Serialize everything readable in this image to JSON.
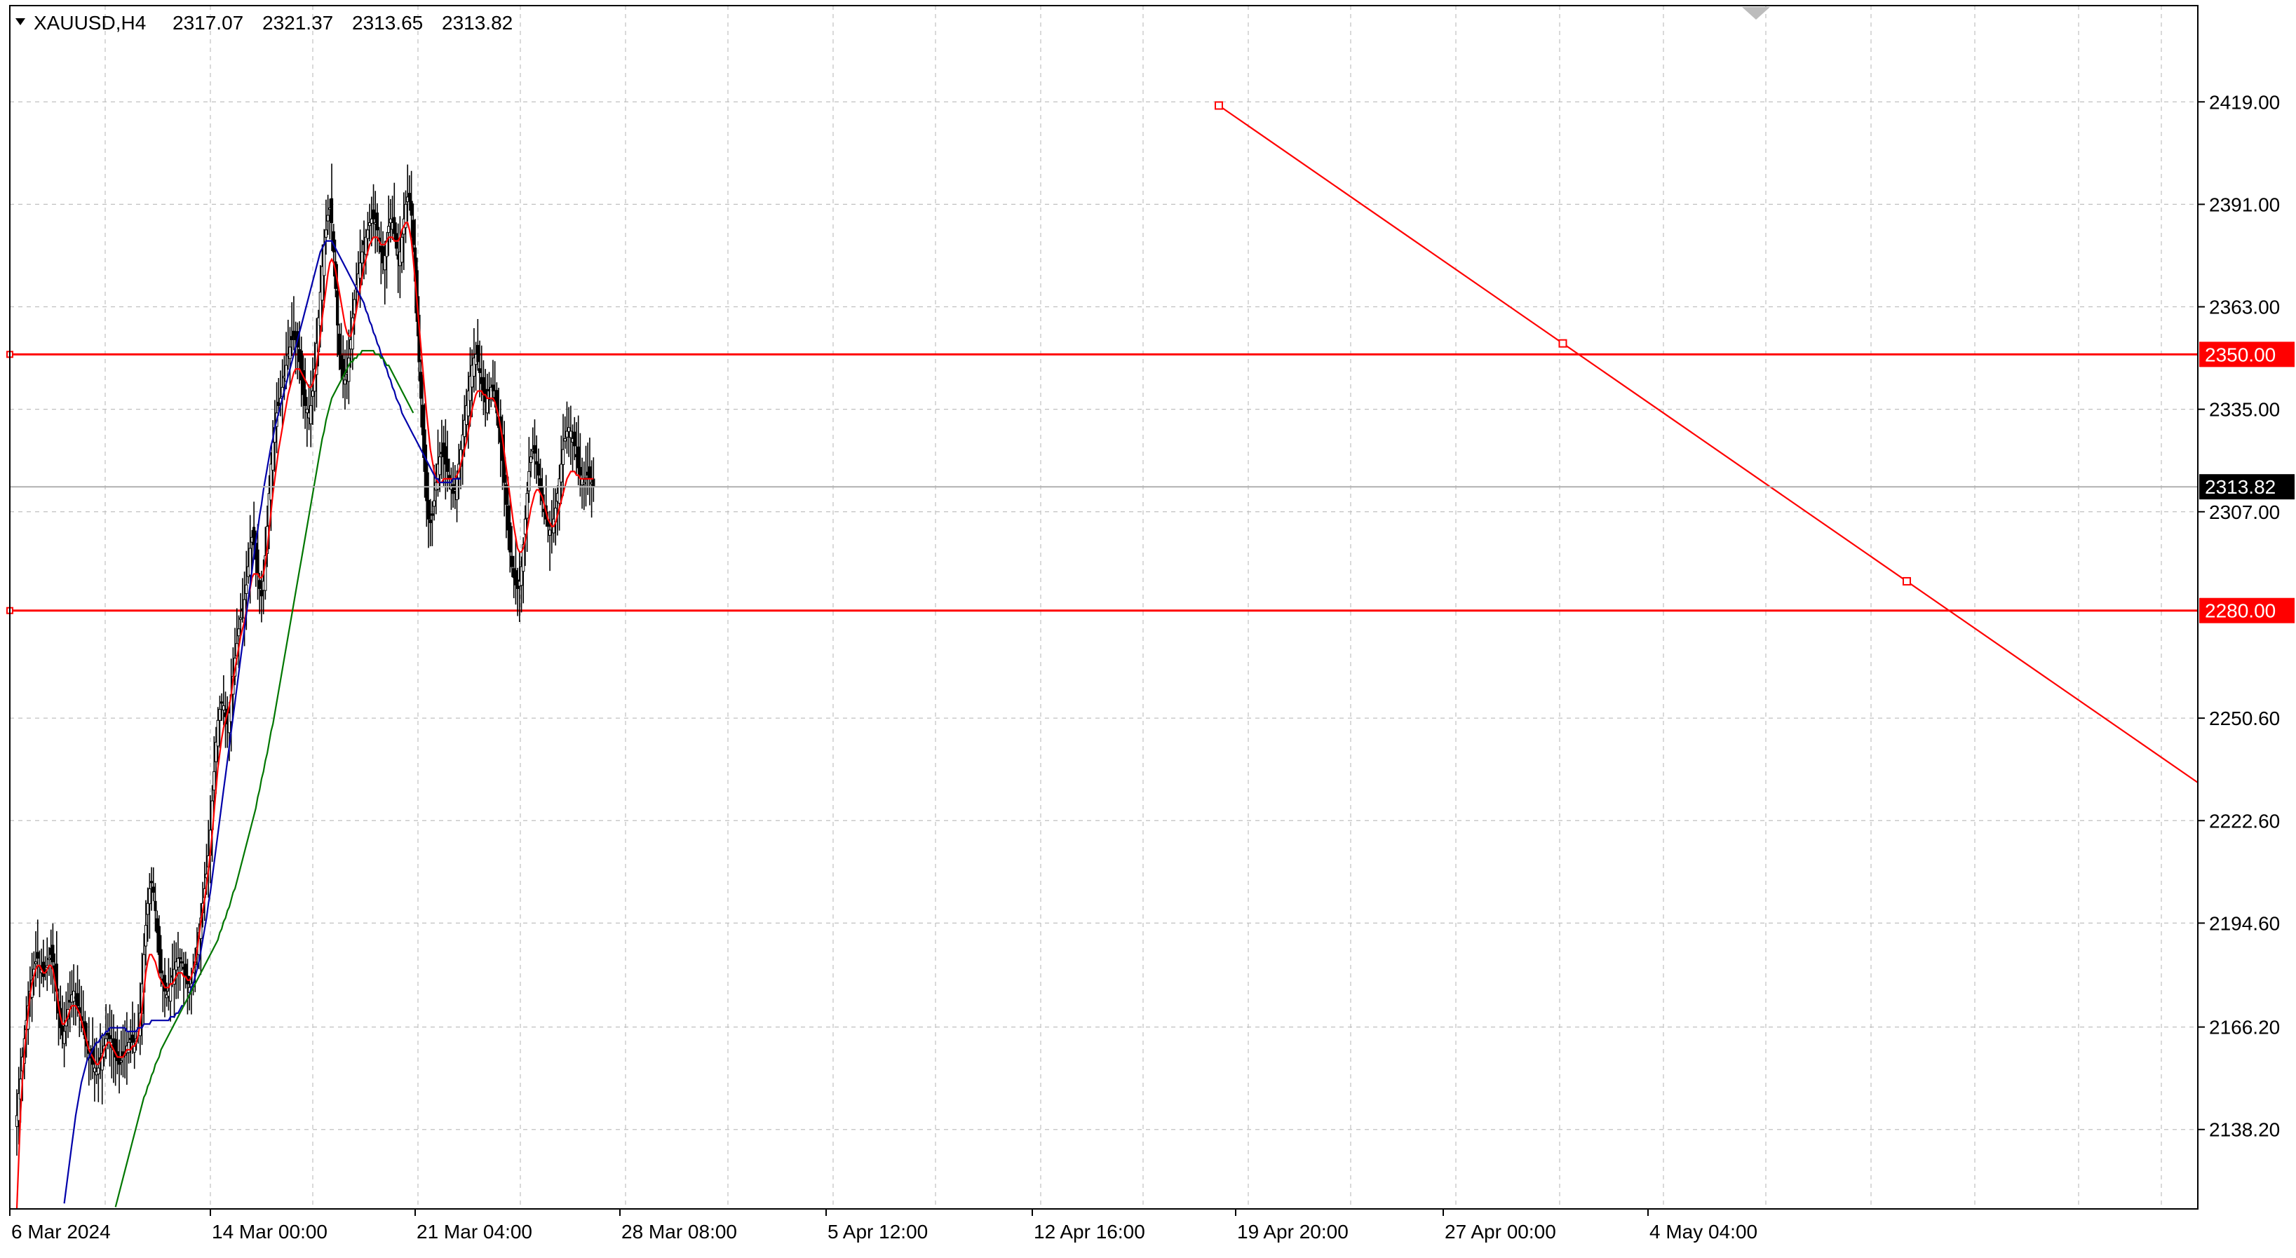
{
  "header": {
    "symbol": "XAUUSD,H4",
    "open": "2317.07",
    "high": "2321.37",
    "low": "2313.65",
    "close": "2313.82"
  },
  "colors": {
    "background": "#ffffff",
    "grid": "#c0c0c0",
    "candle": "#000000",
    "ma_fast": "#ff0000",
    "ma_mid": "#0000aa",
    "ma_slow": "#007700",
    "level_line": "#ff0000",
    "trend_line": "#ff0000",
    "price_label_bg": "#000000",
    "price_label_text": "#ffffff"
  },
  "chart_data": {
    "type": "candlestick",
    "symbol": "XAUUSD",
    "timeframe": "H4",
    "ylim": [
      2116.5,
      2445.3
    ],
    "y_ticks": [
      "2419.00",
      "2391.00",
      "2363.00",
      "2335.00",
      "2307.00",
      "2250.60",
      "2222.60",
      "2194.60",
      "2166.20",
      "2138.20"
    ],
    "x_ticks": [
      "6 Mar 2024",
      "14 Mar 00:00",
      "21 Mar 04:00",
      "28 Mar 08:00",
      "5 Apr 12:00",
      "12 Apr 16:00",
      "19 Apr 20:00",
      "27 Apr 00:00",
      "4 May 04:00"
    ],
    "current_price": "2313.82",
    "horizontal_levels": [
      {
        "value": 2350.0,
        "label": "2350.00"
      },
      {
        "value": 2280.0,
        "label": "2280.00"
      }
    ],
    "trend_line": {
      "from": {
        "date": "2024-04-18 12:00",
        "price": 2418.0
      },
      "to": {
        "date": "2024-05-17 00:00",
        "price": 2233.0
      }
    },
    "trend_line_markers": [
      2418.0,
      2353.0,
      2288.0
    ],
    "close_series": [
      2142,
      2148,
      2152,
      2158,
      2163,
      2168,
      2172,
      2176,
      2179,
      2182,
      2184,
      2185,
      2183,
      2182,
      2180,
      2181,
      2183,
      2185,
      2186,
      2184,
      2181,
      2176,
      2170,
      2166,
      2164,
      2165,
      2168,
      2171,
      2173,
      2175,
      2176,
      2174,
      2172,
      2170,
      2168,
      2166,
      2163,
      2161,
      2159,
      2158,
      2156,
      2155,
      2154,
      2155,
      2157,
      2159,
      2161,
      2163,
      2164,
      2163,
      2162,
      2160,
      2158,
      2157,
      2156,
      2157,
      2158,
      2159,
      2161,
      2162,
      2163,
      2162,
      2161,
      2163,
      2166,
      2170,
      2178,
      2186,
      2194,
      2200,
      2204,
      2206,
      2203,
      2198,
      2192,
      2186,
      2181,
      2178,
      2176,
      2175,
      2176,
      2178,
      2180,
      2182,
      2184,
      2185,
      2185,
      2184,
      2182,
      2180,
      2178,
      2177,
      2178,
      2181,
      2184,
      2188,
      2192,
      2196,
      2200,
      2204,
      2208,
      2213,
      2220,
      2228,
      2236,
      2244,
      2250,
      2253,
      2255,
      2254,
      2251,
      2249,
      2252,
      2257,
      2262,
      2267,
      2271,
      2275,
      2278,
      2280,
      2283,
      2287,
      2292,
      2297,
      2300,
      2298,
      2294,
      2290,
      2286,
      2284,
      2288,
      2295,
      2303,
      2312,
      2320,
      2326,
      2330,
      2334,
      2336,
      2338,
      2341,
      2344,
      2347,
      2350,
      2352,
      2354,
      2355,
      2354,
      2352,
      2348,
      2343,
      2339,
      2336,
      2335,
      2334,
      2336,
      2340,
      2346,
      2353,
      2360,
      2367,
      2374,
      2380,
      2384,
      2388,
      2390,
      2386,
      2378,
      2368,
      2358,
      2350,
      2346,
      2344,
      2343,
      2345,
      2349,
      2354,
      2360,
      2365,
      2369,
      2372,
      2375,
      2378,
      2380,
      2382,
      2384,
      2386,
      2387,
      2387,
      2386,
      2384,
      2381,
      2378,
      2375,
      2377,
      2381,
      2385,
      2387,
      2386,
      2383,
      2379,
      2376,
      2378,
      2382,
      2387,
      2391,
      2393,
      2392,
      2388,
      2380,
      2370,
      2359,
      2348,
      2338,
      2328,
      2318,
      2310,
      2305,
      2304,
      2306,
      2310,
      2315,
      2320,
      2322,
      2323,
      2322,
      2320,
      2318,
      2316,
      2314,
      2312,
      2313,
      2316,
      2320,
      2324,
      2328,
      2332,
      2336,
      2340,
      2344,
      2347,
      2349,
      2350,
      2348,
      2345,
      2342,
      2339,
      2337,
      2338,
      2340,
      2341,
      2340,
      2338,
      2334,
      2330,
      2326,
      2321,
      2315,
      2309,
      2302,
      2296,
      2292,
      2289,
      2287,
      2286,
      2288,
      2292,
      2298,
      2305,
      2312,
      2318,
      2322,
      2324,
      2323,
      2320,
      2317,
      2313,
      2310,
      2307,
      2305,
      2303,
      2302,
      2303,
      2305,
      2308,
      2312,
      2316,
      2320,
      2324,
      2327,
      2329,
      2330,
      2329,
      2327,
      2325,
      2322,
      2319,
      2317,
      2316,
      2315,
      2316,
      2317,
      2316,
      2315,
      2314
    ],
    "ma_fast": [
      2116.6,
      2130,
      2143,
      2152,
      2159,
      2165,
      2170,
      2175,
      2178,
      2180,
      2182,
      2183,
      2183,
      2182,
      2181,
      2181,
      2182,
      2183,
      2183,
      2182,
      2179,
      2176,
      2172,
      2169,
      2167,
      2167,
      2168,
      2169,
      2171,
      2172,
      2172,
      2172,
      2171,
      2170,
      2168,
      2166,
      2164,
      2162,
      2160,
      2159,
      2158,
      2157,
      2156,
      2156,
      2157,
      2158,
      2160,
      2161,
      2162,
      2162,
      2161,
      2160,
      2159,
      2158,
      2158,
      2158,
      2158,
      2159,
      2160,
      2160,
      2160,
      2161,
      2161,
      2162,
      2164,
      2167,
      2171,
      2176,
      2181,
      2184,
      2186,
      2186,
      2185,
      2184,
      2182,
      2180,
      2179,
      2178,
      2177,
      2177,
      2177,
      2178,
      2178,
      2179,
      2180,
      2181,
      2181,
      2181,
      2180,
      2180,
      2179,
      2179,
      2180,
      2182,
      2184,
      2187,
      2191,
      2195,
      2198,
      2201,
      2205,
      2209,
      2214,
      2219,
      2225,
      2231,
      2237,
      2241,
      2245,
      2248,
      2250,
      2252,
      2254,
      2257,
      2261,
      2264,
      2267,
      2270,
      2273,
      2275,
      2277,
      2280,
      2283,
      2286,
      2289,
      2290,
      2290,
      2290,
      2289,
      2289,
      2290,
      2293,
      2297,
      2302,
      2307,
      2312,
      2316,
      2320,
      2324,
      2327,
      2330,
      2333,
      2336,
      2339,
      2341,
      2343,
      2345,
      2346,
      2346,
      2346,
      2345,
      2344,
      2343,
      2342,
      2341,
      2341,
      2342,
      2344,
      2347,
      2351,
      2355,
      2360,
      2364,
      2368,
      2372,
      2375,
      2376,
      2375,
      2373,
      2370,
      2367,
      2364,
      2361,
      2358,
      2356,
      2355,
      2355,
      2357,
      2359,
      2362,
      2365,
      2368,
      2371,
      2374,
      2376,
      2378,
      2380,
      2381,
      2382,
      2382,
      2382,
      2381,
      2380,
      2380,
      2380,
      2381,
      2382,
      2382,
      2382,
      2381,
      2381,
      2381,
      2382,
      2384,
      2385,
      2386,
      2386,
      2384,
      2381,
      2376,
      2370,
      2364,
      2358,
      2352,
      2346,
      2340,
      2334,
      2329,
      2324,
      2321,
      2318,
      2316,
      2315,
      2315,
      2315,
      2316,
      2316,
      2316,
      2316,
      2316,
      2316,
      2316,
      2317,
      2318,
      2320,
      2322,
      2324,
      2326,
      2329,
      2332,
      2335,
      2337,
      2339,
      2340,
      2340,
      2340,
      2339,
      2339,
      2338,
      2338,
      2338,
      2338,
      2337,
      2335,
      2333,
      2330,
      2327,
      2323,
      2319,
      2315,
      2311,
      2307,
      2303,
      2300,
      2297,
      2296,
      2296,
      2297,
      2299,
      2302,
      2305,
      2308,
      2310,
      2312,
      2313,
      2313,
      2312,
      2311,
      2309,
      2307,
      2305,
      2304,
      2303,
      2303,
      2304,
      2306,
      2308,
      2310,
      2312,
      2314,
      2316,
      2317,
      2318,
      2318,
      2318,
      2317,
      2317,
      2316,
      2316,
      2316,
      2316,
      2316,
      2316,
      2316,
      2316
    ],
    "ma_mid": [
      null,
      null,
      null,
      null,
      null,
      null,
      null,
      null,
      null,
      null,
      null,
      null,
      null,
      null,
      null,
      null,
      null,
      null,
      null,
      null,
      null,
      null,
      null,
      null,
      null,
      2118,
      2122,
      2126,
      2130,
      2134,
      2138,
      2142,
      2145,
      2148,
      2151,
      2153,
      2155,
      2157,
      2158,
      2159,
      2160,
      2161,
      2162,
      2162,
      2163,
      2164,
      2164,
      2165,
      2165,
      2166,
      2166,
      2166,
      2166,
      2166,
      2166,
      2166,
      2166,
      2166,
      2165,
      2165,
      2165,
      2165,
      2165,
      2165,
      2166,
      2166,
      2166,
      2167,
      2167,
      2167,
      2167,
      2168,
      2168,
      2168,
      2168,
      2168,
      2168,
      2168,
      2168,
      2168,
      2168,
      2169,
      2169,
      2169,
      2170,
      2170,
      2171,
      2172,
      2172,
      2173,
      2174,
      2175,
      2177,
      2178,
      2180,
      2182,
      2184,
      2187,
      2190,
      2193,
      2196,
      2200,
      2203,
      2207,
      2211,
      2215,
      2219,
      2223,
      2227,
      2231,
      2235,
      2239,
      2243,
      2247,
      2251,
      2255,
      2259,
      2263,
      2267,
      2271,
      2275,
      2279,
      2283,
      2287,
      2291,
      2295,
      2299,
      2302,
      2306,
      2309,
      2313,
      2316,
      2319,
      2322,
      2325,
      2327,
      2330,
      2332,
      2334,
      2336,
      2338,
      2340,
      2342,
      2344,
      2346,
      2348,
      2350,
      2352,
      2354,
      2356,
      2358,
      2360,
      2362,
      2364,
      2366,
      2368,
      2370,
      2372,
      2374,
      2376,
      2378,
      2379,
      2380,
      2381,
      2381,
      2381,
      2381,
      2380,
      2379,
      2378,
      2377,
      2376,
      2375,
      2374,
      2373,
      2372,
      2371,
      2370,
      2369,
      2368,
      2367,
      2366,
      2365,
      2364,
      2362,
      2361,
      2359,
      2358,
      2356,
      2355,
      2353,
      2352,
      2350,
      2349,
      2347,
      2346,
      2344,
      2343,
      2341,
      2340,
      2338,
      2337,
      2336,
      2334,
      2333,
      2332,
      2331,
      2330,
      2329,
      2328,
      2327,
      2326,
      2325,
      2324,
      2323,
      2322,
      2321,
      2320,
      2319,
      2318,
      2317,
      2316,
      2316,
      2315,
      2315,
      2315,
      2315,
      2315,
      2315,
      2315,
      2316,
      2316,
      2316,
      2316,
      2316
    ],
    "ma_slow": [
      null,
      null,
      null,
      null,
      null,
      null,
      null,
      null,
      null,
      null,
      null,
      null,
      null,
      null,
      null,
      null,
      null,
      null,
      null,
      null,
      null,
      null,
      null,
      null,
      null,
      null,
      null,
      null,
      null,
      null,
      null,
      null,
      null,
      null,
      null,
      null,
      null,
      null,
      null,
      null,
      null,
      null,
      null,
      null,
      null,
      null,
      null,
      null,
      null,
      null,
      null,
      null,
      2117,
      2119,
      2121,
      2123,
      2125,
      2127,
      2129,
      2131,
      2133,
      2135,
      2137,
      2139,
      2141,
      2143,
      2145,
      2147,
      2148,
      2150,
      2151,
      2153,
      2154,
      2156,
      2157,
      2158,
      2160,
      2161,
      2162,
      2163,
      2164,
      2165,
      2166,
      2167,
      2168,
      2169,
      2170,
      2171,
      2172,
      2173,
      2174,
      2175,
      2176,
      2177,
      2178,
      2179,
      2180,
      2181,
      2182,
      2183,
      2184,
      2185,
      2186,
      2187,
      2188,
      2189,
      2190,
      2192,
      2193,
      2195,
      2196,
      2198,
      2199,
      2201,
      2203,
      2204,
      2206,
      2208,
      2210,
      2212,
      2214,
      2216,
      2218,
      2220,
      2222,
      2224,
      2226,
      2229,
      2231,
      2234,
      2236,
      2239,
      2241,
      2244,
      2247,
      2249,
      2252,
      2255,
      2258,
      2261,
      2264,
      2267,
      2270,
      2273,
      2276,
      2279,
      2282,
      2285,
      2288,
      2291,
      2294,
      2297,
      2300,
      2303,
      2306,
      2309,
      2312,
      2315,
      2318,
      2321,
      2324,
      2327,
      2329,
      2332,
      2334,
      2336,
      2338,
      2339,
      2340,
      2341,
      2342,
      2343,
      2344,
      2345,
      2346,
      2347,
      2348,
      2348,
      2349,
      2349,
      2350,
      2350,
      2351,
      2351,
      2351,
      2351,
      2351,
      2351,
      2351,
      2350,
      2350,
      2350,
      2349,
      2349,
      2348,
      2347,
      2347,
      2346,
      2345,
      2344,
      2343,
      2342,
      2341,
      2340,
      2339,
      2338,
      2337,
      2336,
      2335,
      2334
    ]
  }
}
